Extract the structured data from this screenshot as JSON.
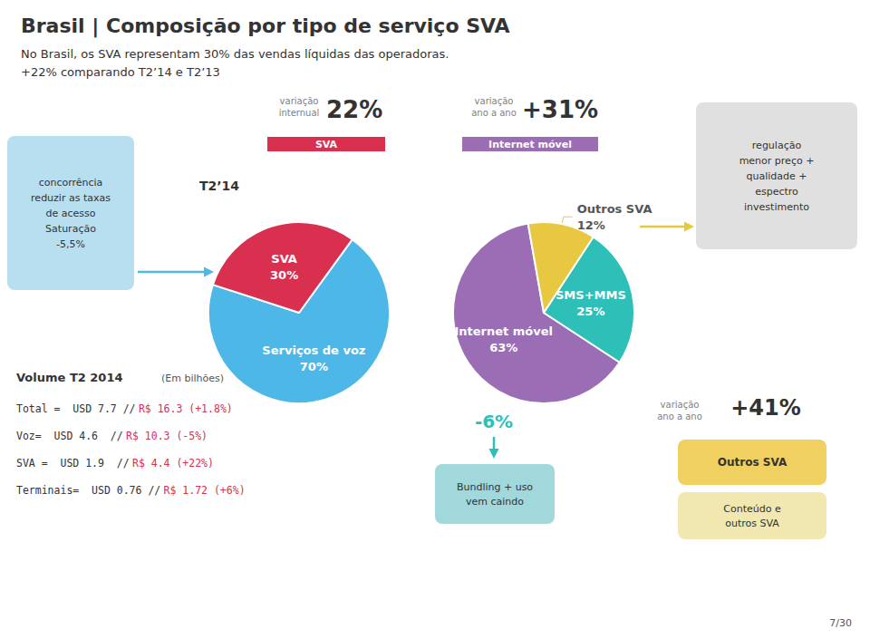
{
  "title": "Brasil | Composição por tipo de serviço SVA",
  "subtitle": [
    "No Brasil, os SVA representam 30% das vendas líquidas das operadoras.",
    "+22% comparando T2’14 e T2’13"
  ],
  "chart_data": [
    {
      "type": "pie",
      "title": "T2’14",
      "categories": [
        "Serviços de voz",
        "SVA"
      ],
      "values": [
        70,
        30
      ],
      "value_labels": [
        "70%",
        "30%"
      ],
      "colors": [
        "#4db8e8",
        "#d93050"
      ],
      "data_labels": true
    },
    {
      "type": "pie",
      "categories": [
        "Internet móvel",
        "SMS+MMS",
        "Outros SVA"
      ],
      "values": [
        63,
        25,
        12
      ],
      "value_labels": [
        "63%",
        "25%",
        "12%"
      ],
      "colors": [
        "#9b6db5",
        "#2dbfb8",
        "#e8c840"
      ],
      "data_labels": true
    }
  ],
  "annotations": {
    "concorrencia": {
      "text": "concorrência\nreduzir as taxas\nde acesso\nSaturação\n-5,5%",
      "color": "#b8dff0",
      "arrow_color": "#4db8e8"
    },
    "sva_change": {
      "caption": "variação\ninternual",
      "change": "22%",
      "name": "SVA",
      "color": "#d93050"
    },
    "internet_change": {
      "caption": "variação\nano a ano",
      "change": "+31%",
      "name": "Internet móvel",
      "color": "#9b6db5"
    },
    "regulacao": {
      "text": "regulação\nmenor preço +\nqualidade +\nespectro\ninvestimento",
      "color": "#e0e0e0",
      "arrow_color": "#e8c840"
    },
    "sms_change": {
      "change": "-6%",
      "text": "Bundling + uso\nvem caindo",
      "color": "#2dbfb8",
      "box_color": "#a0d8dc"
    },
    "outros_change": {
      "caption": "variação\nano a ano",
      "change": "+41%",
      "name": "Outros SVA",
      "name_color": "#f0d060",
      "text": "Conteúdo e\noutros SVA",
      "text_color": "#f0e8b0"
    },
    "volume": {
      "title": "Volume T2 2014",
      "unit": "(Em bilhões)",
      "color": "#d93050",
      "lines": [
        [
          "Total =  USD 7.7 //",
          "R$ 16.3 (+1.8%)"
        ],
        [
          "Voz=  USD 4.6  //",
          "R$ 10.3 (-5%)"
        ],
        [
          "SVA =  USD 1.9  //",
          "R$ 4.4 (+22%)"
        ],
        [
          "Terminais=  USD 0.76 //",
          "R$ 1.72 (+6%)"
        ]
      ]
    },
    "page": "7/30"
  }
}
